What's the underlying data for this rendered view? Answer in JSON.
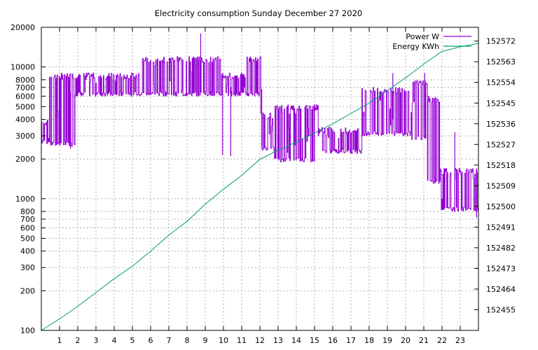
{
  "chart_data": {
    "type": "line",
    "title": "Electricity consumption Sunday December 27 2020",
    "xlabel": "",
    "ylabel": "",
    "xlim": [
      0,
      24
    ],
    "ylim": [
      100,
      20000
    ],
    "yscale": "log",
    "y2lim": [
      152446,
      152578
    ],
    "grid": true,
    "legend_position": "top-right",
    "x_ticks": [
      "1",
      "2",
      "3",
      "4",
      "5",
      "6",
      "7",
      "8",
      "9",
      "10",
      "11",
      "12",
      "13",
      "14",
      "15",
      "16",
      "17",
      "18",
      "19",
      "20",
      "21",
      "22",
      "23"
    ],
    "y_ticks": [
      "100",
      "200",
      "300",
      "400",
      "500",
      "600",
      "700",
      "800",
      "1000",
      "2000",
      "3000",
      "4000",
      "5000",
      "6000",
      "7000",
      "8000",
      "10000",
      "20000"
    ],
    "y2_ticks": [
      "152455",
      "152464",
      "152473",
      "152482",
      "152491",
      "152500",
      "152509",
      "152518",
      "152527",
      "152536",
      "152545",
      "152554",
      "152563",
      "152572"
    ],
    "series": [
      {
        "name": "Power W",
        "color": "#9400d3",
        "axis": "y",
        "segments": [
          {
            "x0": 0.0,
            "x1": 0.45,
            "lo": 2600,
            "hi": 4000
          },
          {
            "x0": 0.45,
            "x1": 1.85,
            "lo": 2500,
            "hi": 9000
          },
          {
            "x0": 1.85,
            "x1": 5.4,
            "lo": 6000,
            "hi": 9000
          },
          {
            "x0": 5.4,
            "x1": 8.6,
            "lo": 6000,
            "hi": 12000
          },
          {
            "x0": 8.6,
            "x1": 9.9,
            "lo": 6000,
            "hi": 12000
          },
          {
            "x0": 9.9,
            "x1": 11.2,
            "lo": 6000,
            "hi": 9000
          },
          {
            "x0": 11.2,
            "x1": 12.05,
            "lo": 6000,
            "hi": 12000
          },
          {
            "x0": 12.05,
            "x1": 12.8,
            "lo": 2300,
            "hi": 4500
          },
          {
            "x0": 12.8,
            "x1": 15.2,
            "lo": 1900,
            "hi": 5200
          },
          {
            "x0": 15.2,
            "x1": 17.6,
            "lo": 2200,
            "hi": 3500
          },
          {
            "x0": 17.6,
            "x1": 20.3,
            "lo": 3000,
            "hi": 7000
          },
          {
            "x0": 20.3,
            "x1": 21.2,
            "lo": 2800,
            "hi": 8000
          },
          {
            "x0": 21.2,
            "x1": 21.9,
            "lo": 1300,
            "hi": 6000
          },
          {
            "x0": 21.9,
            "x1": 24.0,
            "lo": 800,
            "hi": 1700
          }
        ],
        "spikes": [
          {
            "x": 1.6,
            "lo": 2400,
            "hi": 6500
          },
          {
            "x": 8.75,
            "lo": 6500,
            "hi": 18000
          },
          {
            "x": 9.95,
            "lo": 2150,
            "hi": 9000
          },
          {
            "x": 10.4,
            "lo": 2100,
            "hi": 7000
          },
          {
            "x": 12.1,
            "lo": 2500,
            "hi": 6800
          },
          {
            "x": 19.3,
            "lo": 4000,
            "hi": 9000
          },
          {
            "x": 21.05,
            "lo": 3500,
            "hi": 9000
          },
          {
            "x": 22.7,
            "lo": 800,
            "hi": 3200
          },
          {
            "x": 23.9,
            "lo": 720,
            "hi": 1700
          }
        ]
      },
      {
        "name": "Energy KWh",
        "color": "#009e73",
        "axis": "y2",
        "x": [
          0,
          1,
          2,
          3,
          4,
          5,
          6,
          7,
          8,
          9,
          10,
          11,
          12,
          13,
          14,
          15,
          16,
          17,
          18,
          19,
          20,
          21,
          22,
          23,
          24
        ],
        "values": [
          152446.0,
          152451.0,
          152456.5,
          152462.5,
          152468.5,
          152474.0,
          152480.5,
          152487.5,
          152493.5,
          152501.0,
          152507.5,
          152513.5,
          152520.5,
          152524.5,
          152528.0,
          152532.0,
          152536.0,
          152540.5,
          152545.0,
          152550.5,
          152556.0,
          152562.0,
          152567.5,
          152569.5,
          152571.0
        ]
      }
    ]
  }
}
